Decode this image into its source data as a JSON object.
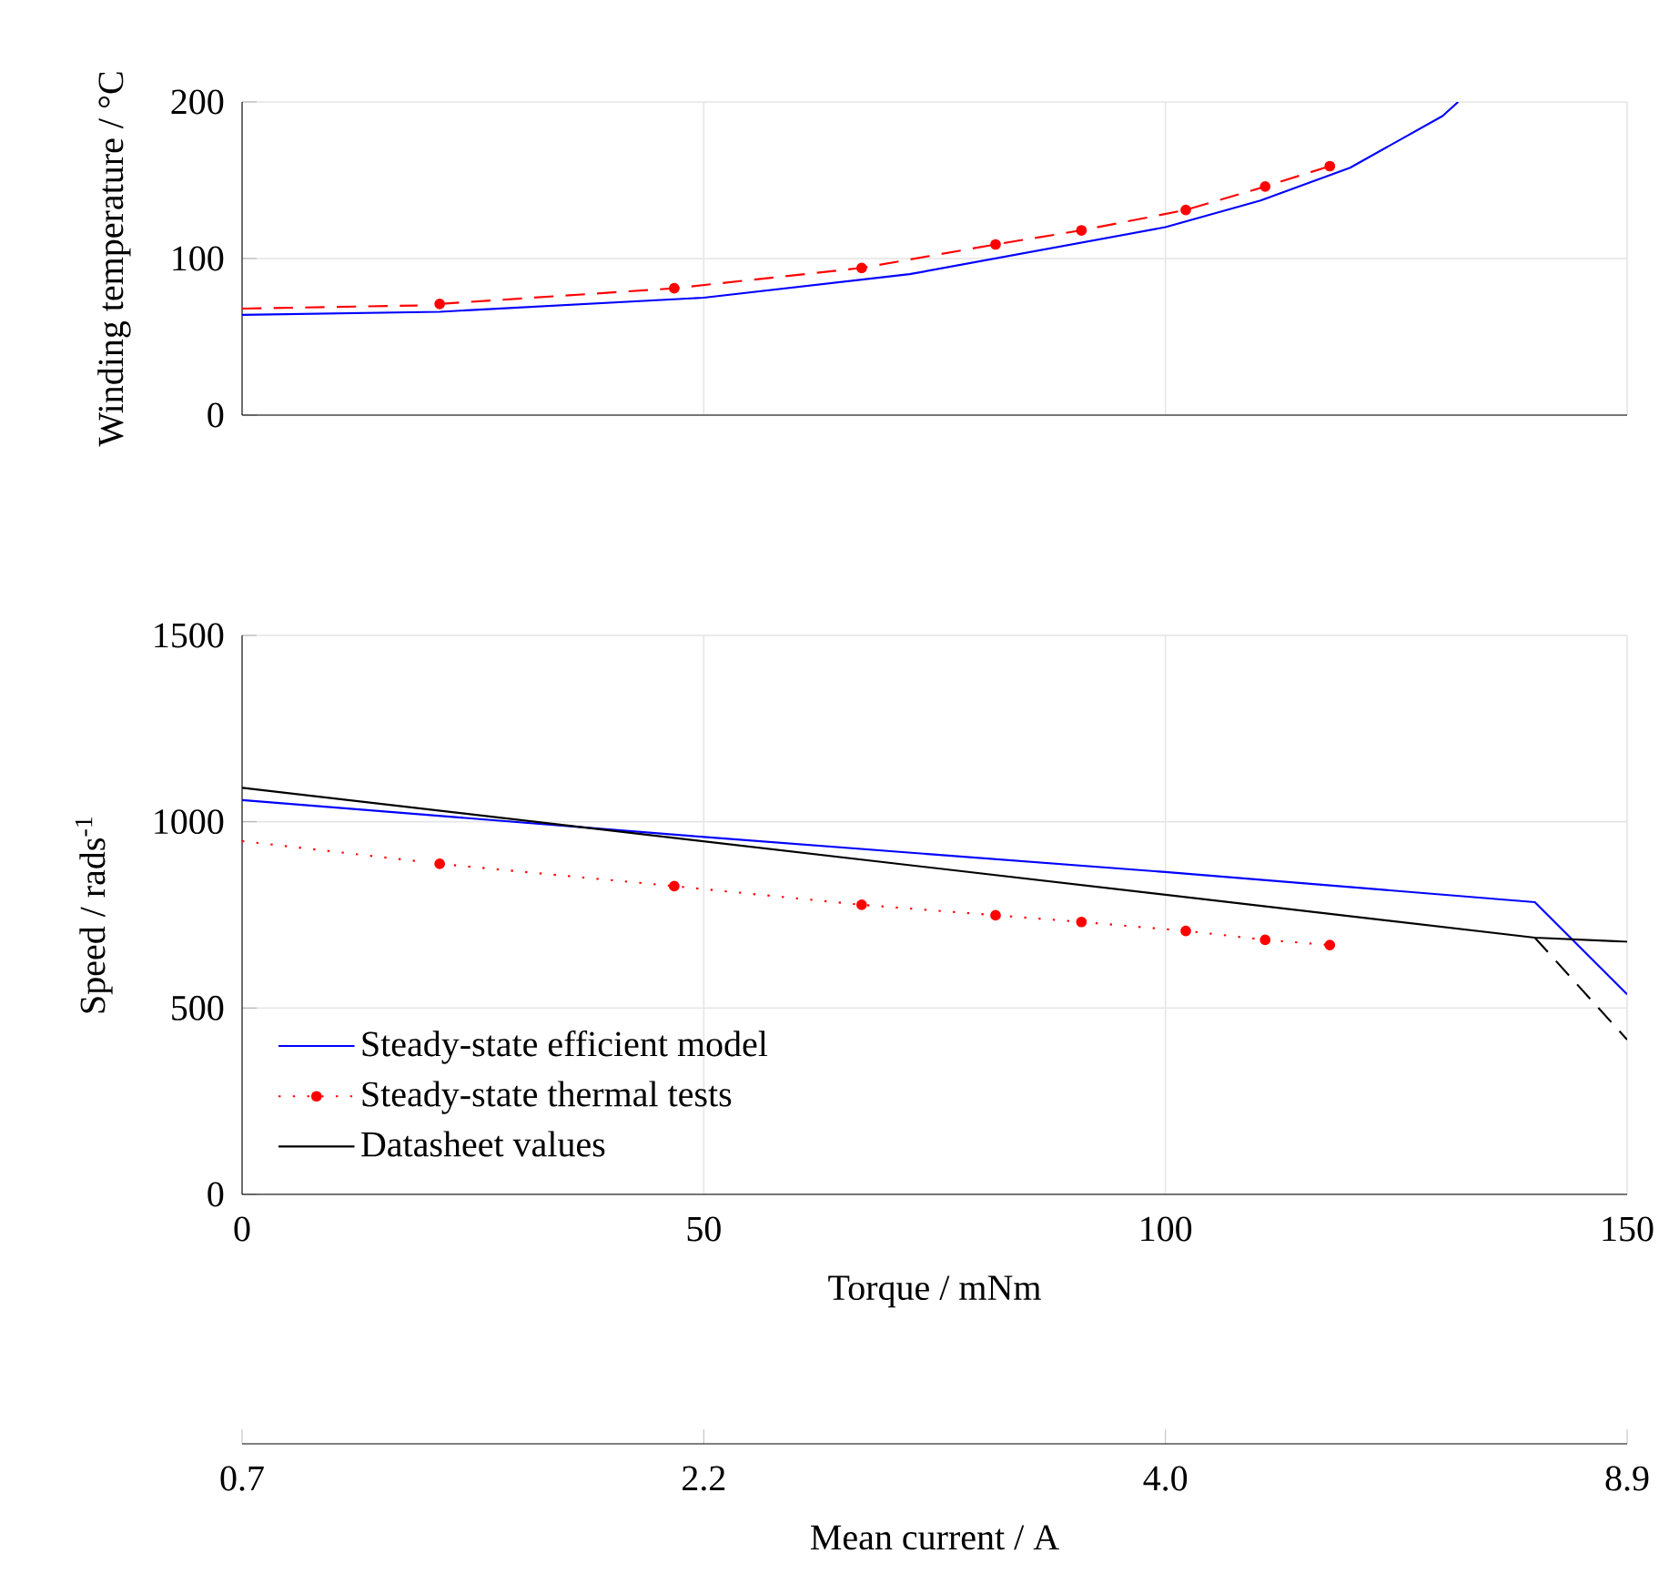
{
  "chart_data": [
    {
      "type": "line",
      "ylabel": "Winding temperature / °C",
      "xlim": [
        0,
        150
      ],
      "ylim": [
        0,
        200
      ],
      "xticks": [
        0,
        50,
        100,
        150
      ],
      "yticks": [
        0,
        100,
        200
      ],
      "grid": true,
      "tick_labels": "y",
      "series": [
        {
          "color": "#0000ff",
          "line_style": "solid",
          "x": [
            0,
            21.4,
            50,
            72.3,
            100,
            110.3,
            120,
            130,
            131.7
          ],
          "values": [
            64,
            66,
            75,
            90,
            120,
            137,
            158,
            191,
            200
          ]
        },
        {
          "color": "#ff0000",
          "line_style": "dashed",
          "x": [
            0,
            19
          ],
          "values": [
            68,
            70
          ]
        },
        {
          "color": "#ff0000",
          "line_style": "dashed",
          "marker": "circle",
          "x": [
            21.4,
            46.8,
            67.1,
            81.6,
            90.9,
            102.2,
            110.8,
            117.8
          ],
          "values": [
            71,
            81,
            94,
            109,
            118,
            131,
            146,
            159
          ]
        }
      ]
    },
    {
      "type": "line",
      "xlabel": "Torque / mNm",
      "ylabel": "Speed / rads$^{-1}$",
      "xlim": [
        0,
        150
      ],
      "ylim": [
        0,
        1500
      ],
      "xticks": [
        0,
        50,
        100,
        150
      ],
      "yticks": [
        0,
        500,
        1000,
        1500
      ],
      "grid": true,
      "legend": "bottom left",
      "series": [
        {
          "name": "Steady-state efficient model",
          "color": "#0000ff",
          "line_style": "solid",
          "x": [
            0,
            50,
            100,
            140,
            150
          ],
          "values": [
            1058,
            959,
            865,
            784,
            537
          ]
        },
        {
          "color": "#ff0000",
          "line_style": "dotted",
          "x": [
            0,
            19
          ],
          "values": [
            948,
            894
          ]
        },
        {
          "name": "Steady-state thermal tests",
          "color": "#ff0000",
          "line_style": "dotted",
          "marker": "circle",
          "x": [
            21.4,
            46.8,
            67.1,
            81.6,
            90.9,
            102.2,
            110.8,
            117.8
          ],
          "values": [
            887,
            827,
            777,
            749,
            731,
            707,
            683,
            669
          ]
        },
        {
          "name": "Datasheet values",
          "color": "#000000",
          "line_style": "solid",
          "x": [
            0,
            140,
            150
          ],
          "values": [
            1091,
            689,
            678
          ]
        },
        {
          "color": "#000000",
          "line_style": "dashed",
          "x": [
            140,
            150
          ],
          "values": [
            689,
            415
          ]
        }
      ]
    },
    {
      "type": "other",
      "xlabel": "Mean current / A",
      "categories": [
        "0.7",
        "2.2",
        "4.0",
        "8.9"
      ]
    }
  ]
}
